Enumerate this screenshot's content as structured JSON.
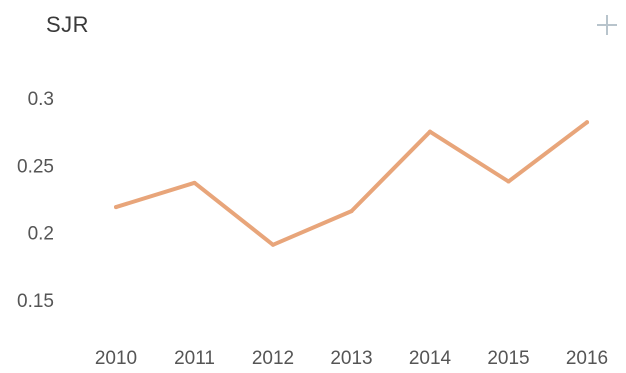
{
  "widget": {
    "title": "SJR",
    "action_icon": "plus-icon"
  },
  "colors": {
    "line": "#e8a57a",
    "tick_text": "#555555",
    "title_text": "#3a3a3a",
    "plus_icon": "#b8c4cc"
  },
  "chart_data": {
    "type": "line",
    "title": "SJR",
    "xlabel": "",
    "ylabel": "",
    "categories": [
      "2010",
      "2011",
      "2012",
      "2013",
      "2014",
      "2015",
      "2016"
    ],
    "series": [
      {
        "values": [
          0.219,
          0.237,
          0.191,
          0.216,
          0.275,
          0.238,
          0.282
        ]
      }
    ],
    "yticks": [
      "0.3",
      "0.25",
      "0.2",
      "0.15"
    ],
    "ylim": [
      0.15,
      0.3
    ],
    "grid": false,
    "legend": "none"
  }
}
